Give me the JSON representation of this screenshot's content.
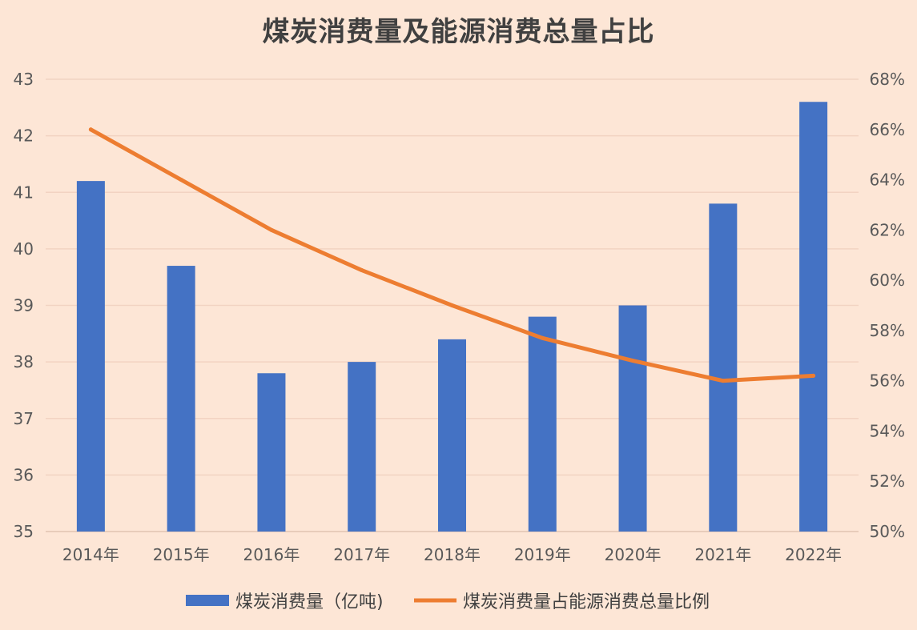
{
  "colors": {
    "background": "#fde6d6",
    "bar": "#4472c4",
    "line": "#ed7d31",
    "grid": "#f2d3c2"
  },
  "chart_data": {
    "type": "bar",
    "title": "煤炭消费量及能源消费总量占比",
    "categories": [
      "2014年",
      "2015年",
      "2016年",
      "2017年",
      "2018年",
      "2019年",
      "2020年",
      "2021年",
      "2022年"
    ],
    "series": [
      {
        "name": "煤炭消费量（亿吨)",
        "type": "bar",
        "axis": "left",
        "values": [
          41.2,
          39.7,
          37.8,
          38.0,
          38.4,
          38.8,
          39.0,
          40.8,
          42.6
        ]
      },
      {
        "name": "煤炭消费量占能源消费总量比例",
        "type": "line",
        "axis": "right",
        "values": [
          66.0,
          64.0,
          62.0,
          60.4,
          59.0,
          57.7,
          56.8,
          56.0,
          56.2
        ]
      }
    ],
    "y_left": {
      "range": [
        35,
        43
      ],
      "ticks": [
        "35",
        "36",
        "37",
        "38",
        "39",
        "40",
        "41",
        "42",
        "43"
      ]
    },
    "y_right": {
      "range": [
        50,
        68
      ],
      "ticks": [
        "50%",
        "52%",
        "54%",
        "56%",
        "58%",
        "60%",
        "62%",
        "64%",
        "66%",
        "68%"
      ]
    },
    "grid": true,
    "legend": "bottom-center"
  }
}
